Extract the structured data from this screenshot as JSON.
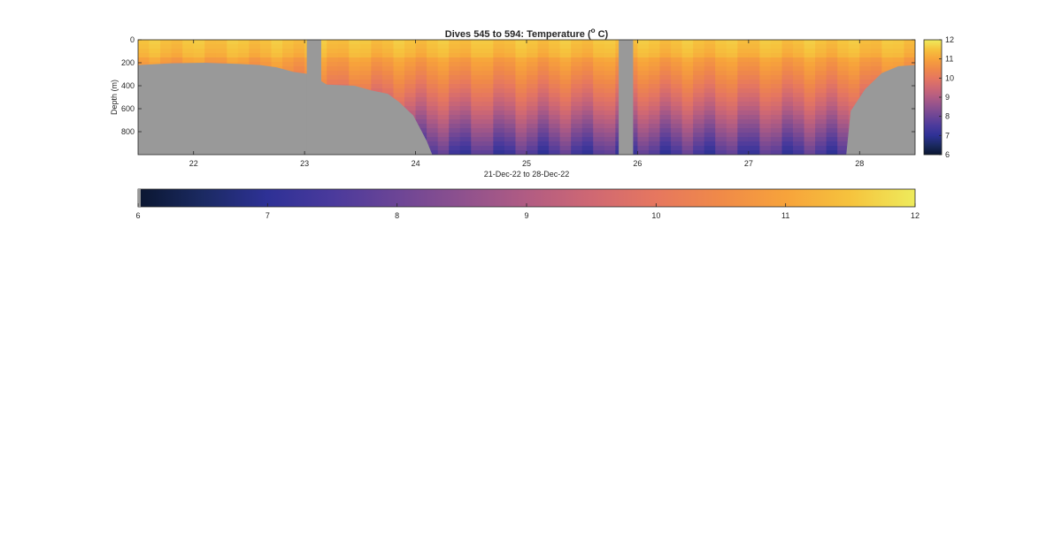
{
  "chart_data": {
    "type": "heatmap",
    "title": {
      "prefix": "Dives 545 to 594: Temperature (",
      "superscript": "o",
      "suffix": " C)"
    },
    "xlabel": "21-Dec-22 to 28-Dec-22",
    "ylabel": "Depth (m)",
    "xlim": [
      21.5,
      28.5
    ],
    "ylim": [
      0,
      1000
    ],
    "x_ticks": [
      22,
      23,
      24,
      25,
      26,
      27,
      28
    ],
    "y_ticks": [
      0,
      200,
      400,
      600,
      800
    ],
    "color_range": [
      6,
      12
    ],
    "colorbar_ticks": [
      6,
      7,
      8,
      9,
      10,
      11,
      12
    ],
    "colormap": [
      "#0a1630",
      "#1b2a62",
      "#2e3196",
      "#4a3a9c",
      "#6c4596",
      "#8e518e",
      "#b15c83",
      "#cf6873",
      "#e6775f",
      "#f08a48",
      "#f7a33b",
      "#f6c33d",
      "#eeeb5c"
    ],
    "no_data_color": "#999999",
    "bathymetry": [
      {
        "x": 21.5,
        "depth": 220
      },
      {
        "x": 21.8,
        "depth": 205
      },
      {
        "x": 22.1,
        "depth": 200
      },
      {
        "x": 22.4,
        "depth": 210
      },
      {
        "x": 22.6,
        "depth": 220
      },
      {
        "x": 22.75,
        "depth": 240
      },
      {
        "x": 22.9,
        "depth": 280
      },
      {
        "x": 23.05,
        "depth": 300
      },
      {
        "x": 23.2,
        "depth": 390
      },
      {
        "x": 23.45,
        "depth": 400
      },
      {
        "x": 23.6,
        "depth": 440
      },
      {
        "x": 23.75,
        "depth": 470
      },
      {
        "x": 23.85,
        "depth": 540
      },
      {
        "x": 23.98,
        "depth": 660
      },
      {
        "x": 24.1,
        "depth": 880
      },
      {
        "x": 24.15,
        "depth": 1000
      },
      {
        "x": 27.88,
        "depth": 1000
      },
      {
        "x": 27.92,
        "depth": 620
      },
      {
        "x": 28.05,
        "depth": 430
      },
      {
        "x": 28.2,
        "depth": 290
      },
      {
        "x": 28.35,
        "depth": 230
      },
      {
        "x": 28.5,
        "depth": 220
      }
    ],
    "no_data_columns": [
      [
        23.02,
        23.15
      ],
      [
        25.83,
        25.96
      ]
    ]
  }
}
